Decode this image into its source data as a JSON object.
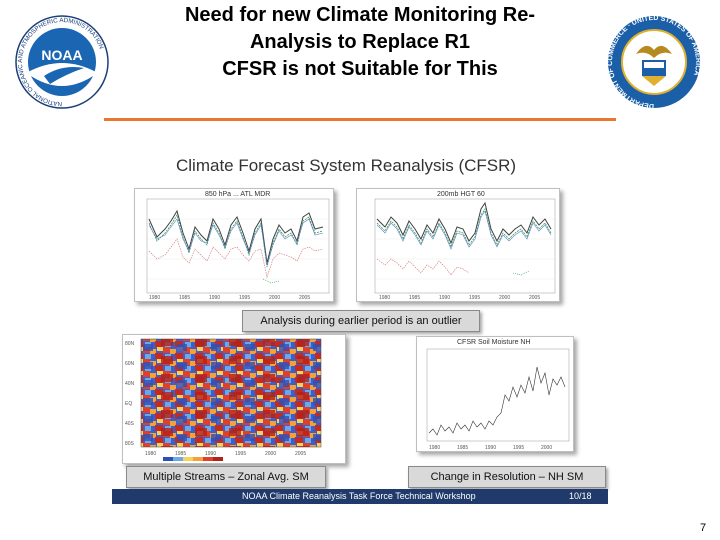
{
  "slide": {
    "title_lines": [
      "Need for new Climate Monitoring Re-",
      "Analysis to Replace R1",
      "CFSR is not Suitable for This"
    ],
    "number": "7"
  },
  "logos": {
    "left": {
      "name": "NOAA",
      "ring_text": "NATIONAL OCEANIC AND ATMOSPHERIC ADMINISTRATION",
      "text": "NOAA"
    },
    "right": {
      "name": "Department of Commerce",
      "ring_text": "DEPARTMENT OF COMMERCE · UNITED STATES OF AMERICA"
    }
  },
  "embedded_slide": {
    "heading": "Climate Forecast System Reanalysis (CFSR)",
    "panels": {
      "top_left": {
        "title": "850 hPa ... ATL MDR"
      },
      "top_right": {
        "title": "200mb HGT 60"
      },
      "bottom_right": {
        "title": "CFSR Soil Moisture NH"
      }
    },
    "captions": {
      "top": "Analysis during earlier period is an outlier",
      "bottom_left": "Multiple Streams – Zonal Avg. SM",
      "bottom_right": "Change in Resolution – NH SM"
    },
    "footer": {
      "text": "NOAA Climate Reanalysis Task Force Technical Workshop",
      "date": "10/18"
    }
  },
  "colors": {
    "accent": "#e8782e",
    "footer_bg": "#1f3a6b",
    "caption_bg": "#d9d9d9"
  }
}
